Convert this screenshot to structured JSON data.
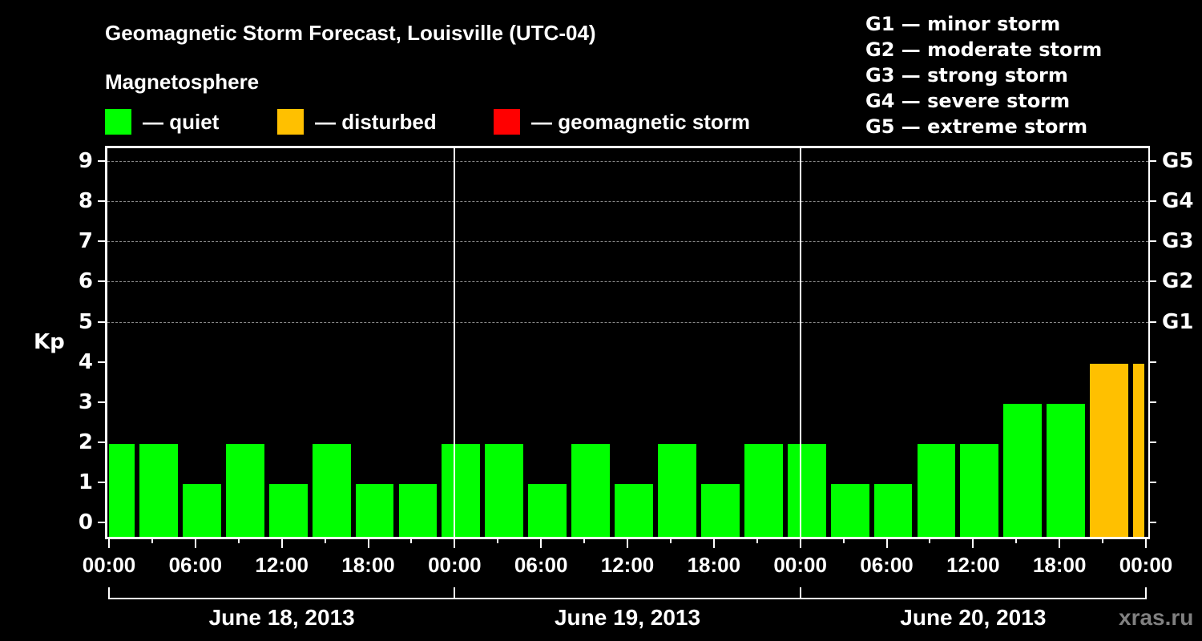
{
  "title": "Geomagnetic Storm Forecast, Louisville (UTC-04)",
  "subtitle": "Magnetosphere",
  "legend": [
    {
      "label": "— quiet",
      "color": "#00ff00"
    },
    {
      "label": "— disturbed",
      "color": "#ffc000"
    },
    {
      "label": "— geomagnetic storm",
      "color": "#ff0000"
    }
  ],
  "storm_scale": [
    "G1 — minor storm",
    "G2 — moderate storm",
    "G3 — strong storm",
    "G4 — severe storm",
    "G5 — extreme storm"
  ],
  "watermark": "xras.ru",
  "chart_data": {
    "type": "bar",
    "title": "Geomagnetic Storm Forecast, Louisville (UTC-04)",
    "subtitle": "Magnetosphere",
    "ylabel": "Kp",
    "ylim": [
      0,
      9
    ],
    "yticks": [
      0,
      1,
      2,
      3,
      4,
      5,
      6,
      7,
      8,
      9
    ],
    "right_axis_labels": [
      {
        "kp": 5,
        "label": "G1"
      },
      {
        "kp": 6,
        "label": "G2"
      },
      {
        "kp": 7,
        "label": "G3"
      },
      {
        "kp": 8,
        "label": "G4"
      },
      {
        "kp": 9,
        "label": "G5"
      }
    ],
    "grid": "dashed horizontal at Kp 5-9",
    "xtick_labels": [
      "00:00",
      "06:00",
      "12:00",
      "18:00",
      "00:00",
      "06:00",
      "12:00",
      "18:00",
      "00:00",
      "06:00",
      "12:00",
      "18:00",
      "00:00"
    ],
    "dates": [
      "June 18, 2013",
      "June 19, 2013",
      "June 20, 2013"
    ],
    "values": [
      2,
      2,
      1,
      2,
      1,
      2,
      1,
      1,
      2,
      2,
      1,
      2,
      1,
      2,
      1,
      2,
      2,
      1,
      1,
      2,
      2,
      3,
      3,
      4,
      4
    ],
    "colors": [
      "quiet",
      "quiet",
      "quiet",
      "quiet",
      "quiet",
      "quiet",
      "quiet",
      "quiet",
      "quiet",
      "quiet",
      "quiet",
      "quiet",
      "quiet",
      "quiet",
      "quiet",
      "quiet",
      "quiet",
      "quiet",
      "quiet",
      "quiet",
      "quiet",
      "quiet",
      "quiet",
      "disturbed",
      "disturbed"
    ],
    "note": "3-hour Kp intervals; first and last bars are partial intervals at chart edges",
    "legend": [
      "quiet",
      "disturbed",
      "geomagnetic storm"
    ],
    "palette": {
      "quiet": "#00ff00",
      "disturbed": "#ffc000",
      "storm": "#ff0000"
    }
  }
}
